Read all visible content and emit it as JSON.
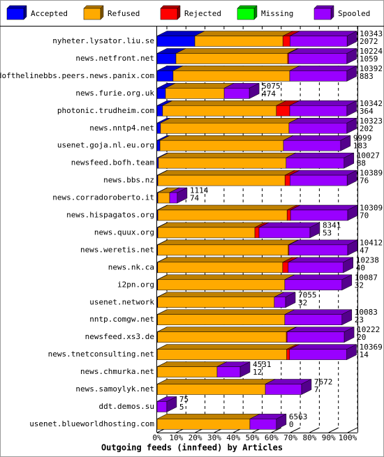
{
  "chart_data": {
    "type": "bar3d",
    "orientation": "horizontal",
    "stacked": true,
    "title": "Outgoing feeds (innfeed) by Articles",
    "categories": [
      "nyheter.lysator.liu.se",
      "news.netfront.net",
      "endofthelinebbs.peers.news.panix.com",
      "news.furie.org.uk",
      "photonic.trudheim.com",
      "news.nntp4.net",
      "usenet.goja.nl.eu.org",
      "newsfeed.bofh.team",
      "news.bbs.nz",
      "news.corradoroberto.it",
      "news.hispagatos.org",
      "news.quux.org",
      "news.weretis.net",
      "news.nk.ca",
      "i2pn.org",
      "usenet.network",
      "nntp.comgw.net",
      "newsfeed.xs3.de",
      "news.tnetconsulting.net",
      "news.chmurka.net",
      "news.samoylyk.net",
      "ddt.demos.su",
      "usenet.blueworldhosting.com"
    ],
    "series": [
      {
        "name": "Accepted",
        "color": "#0000ff",
        "values": [
          19.8,
          9.9,
          8.4,
          4.4,
          2.9,
          1.8,
          1.5,
          0.7,
          0.4,
          0.4,
          0.4,
          0.4,
          0.3,
          0.3,
          0.3,
          0.3,
          0.2,
          0.2,
          0.1,
          0.1,
          0.1,
          0,
          0
        ]
      },
      {
        "name": "Refused",
        "color": "#ffaa00",
        "values": [
          46.2,
          58.6,
          61.2,
          30.8,
          59.7,
          67.4,
          64.8,
          67,
          66.7,
          6.2,
          67.8,
          50.9,
          68.5,
          65.6,
          66.7,
          61.2,
          66.8,
          67.6,
          67.9,
          31.4,
          56.7,
          0,
          48.7
        ]
      },
      {
        "name": "Rejected",
        "color": "#ff0000",
        "values": [
          3.7,
          0.5,
          0,
          0,
          7,
          0,
          0,
          0,
          2.6,
          0,
          1.8,
          2.2,
          0.4,
          2.9,
          0,
          0,
          0,
          0.4,
          1.5,
          0,
          0,
          0,
          0
        ]
      },
      {
        "name": "Missing",
        "color": "#00ff00",
        "values": [
          0,
          0,
          0,
          0,
          0,
          0,
          0,
          0,
          0,
          0,
          0,
          0,
          0,
          0,
          0,
          0,
          0,
          0,
          0,
          0,
          0,
          0,
          0
        ]
      },
      {
        "name": "Spooled",
        "color": "#9900ff",
        "values": [
          30,
          30.6,
          30,
          13.2,
          30,
          30.4,
          30,
          30.4,
          30,
          4,
          30,
          26.7,
          30.8,
          28.9,
          30,
          5.9,
          30,
          30,
          30,
          12.1,
          19,
          5.1,
          13.9
        ]
      }
    ],
    "offered": [
      10343,
      10224,
      10392,
      5075,
      10342,
      10323,
      9999,
      10027,
      10389,
      1114,
      10309,
      8341,
      10412,
      10238,
      10087,
      7055,
      10083,
      10222,
      10369,
      4531,
      7672,
      75,
      6563
    ],
    "accepted": [
      2072,
      1059,
      883,
      474,
      364,
      202,
      183,
      88,
      76,
      74,
      70,
      53,
      47,
      40,
      32,
      32,
      23,
      20,
      14,
      12,
      7,
      5,
      0
    ],
    "xlim": [
      0,
      100
    ],
    "xticks": [
      {
        "value": 0,
        "label": "0%"
      },
      {
        "value": 10,
        "label": "10%"
      },
      {
        "value": 20,
        "label": "20%"
      },
      {
        "value": 30,
        "label": "30%"
      },
      {
        "value": 40,
        "label": "40%"
      },
      {
        "value": 50,
        "label": "50%"
      },
      {
        "value": 60,
        "label": "60%"
      },
      {
        "value": 70,
        "label": "70%"
      },
      {
        "value": 80,
        "label": "80%"
      },
      {
        "value": 90,
        "label": "90%"
      },
      {
        "value": 100,
        "label": "100%"
      }
    ],
    "grid": true
  }
}
